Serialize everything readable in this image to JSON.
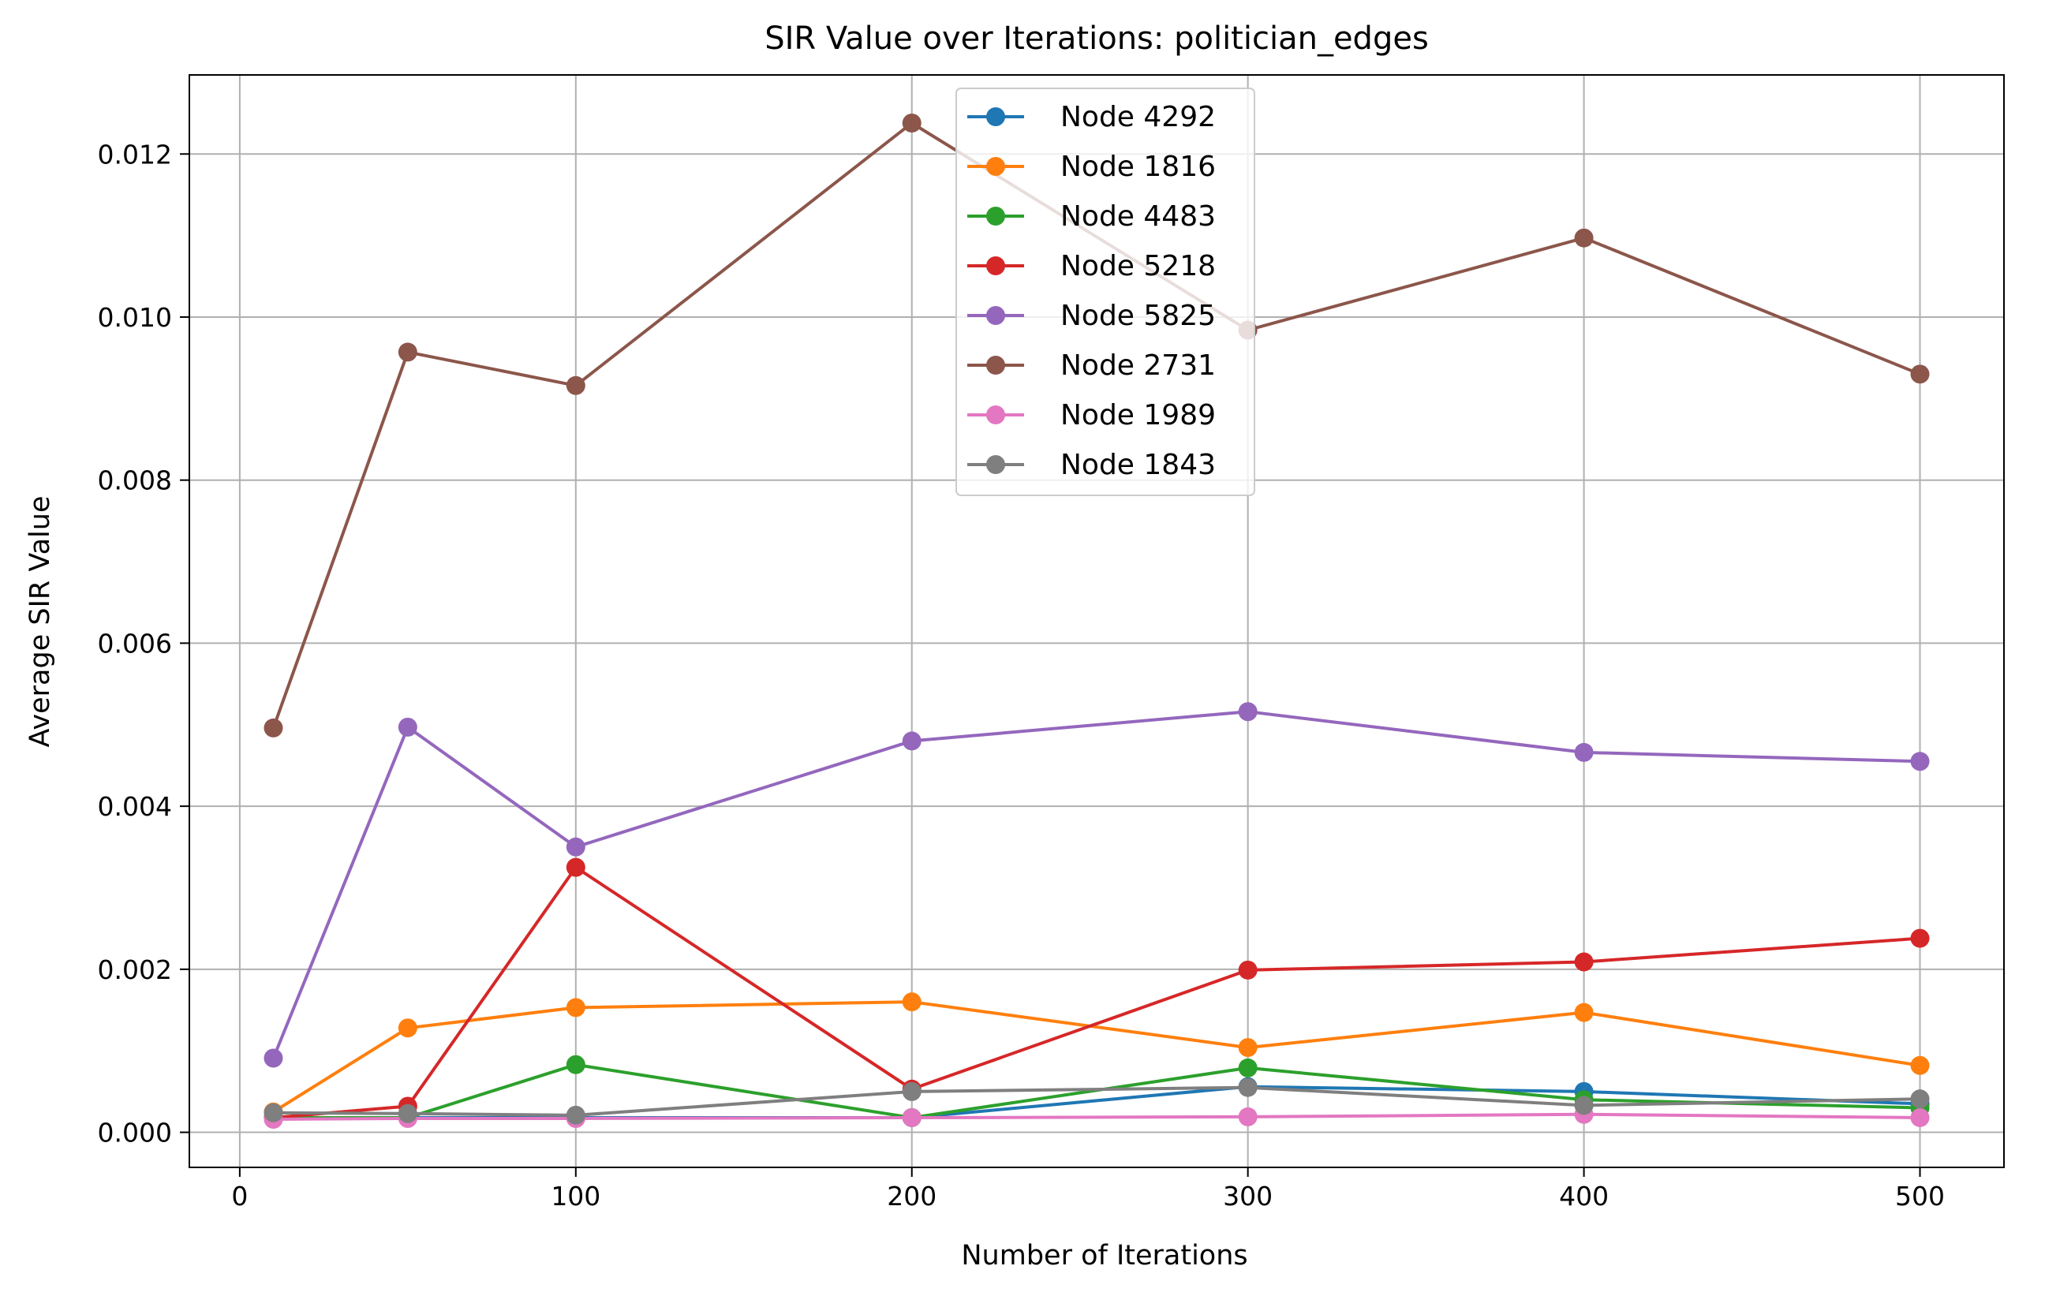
{
  "chart_data": {
    "type": "line",
    "title": "SIR Value over Iterations: politician_edges",
    "xlabel": "Number of Iterations",
    "ylabel": "Average SIR Value",
    "x": [
      10,
      50,
      100,
      200,
      300,
      400,
      500
    ],
    "xlim": [
      -15,
      525
    ],
    "ylim": [
      -0.00043,
      0.01297
    ],
    "xticks": [
      0,
      100,
      200,
      300,
      400,
      500
    ],
    "xtick_labels": [
      "0",
      "100",
      "200",
      "300",
      "400",
      "500"
    ],
    "yticks": [
      0,
      0.002,
      0.004,
      0.006,
      0.008,
      0.01,
      0.012
    ],
    "ytick_labels": [
      "0.000",
      "0.002",
      "0.004",
      "0.006",
      "0.008",
      "0.010",
      "0.012"
    ],
    "grid": true,
    "legend_position": "upper center",
    "series": [
      {
        "name": "Node 4292",
        "color": "#1f77b4",
        "values": [
          0.00018,
          0.00018,
          0.00018,
          0.00018,
          0.00056,
          0.0005,
          0.00035
        ]
      },
      {
        "name": "Node 1816",
        "color": "#ff7f0e",
        "values": [
          0.00025,
          0.00128,
          0.00153,
          0.0016,
          0.00104,
          0.00147,
          0.00082
        ]
      },
      {
        "name": "Node 4483",
        "color": "#2ca02c",
        "values": [
          0.00018,
          0.00018,
          0.00083,
          0.00018,
          0.00079,
          0.0004,
          0.0003
        ]
      },
      {
        "name": "Node 5218",
        "color": "#d62728",
        "values": [
          0.00018,
          0.00032,
          0.00325,
          0.00053,
          0.00199,
          0.00209,
          0.00238
        ]
      },
      {
        "name": "Node 5825",
        "color": "#9467bd",
        "values": [
          0.00091,
          0.00497,
          0.0035,
          0.0048,
          0.00516,
          0.00466,
          0.00455
        ]
      },
      {
        "name": "Node 2731",
        "color": "#8c564b",
        "values": [
          0.00496,
          0.00957,
          0.00916,
          0.01238,
          0.00984,
          0.01097,
          0.0093
        ]
      },
      {
        "name": "Node 1989",
        "color": "#e377c2",
        "values": [
          0.00016,
          0.00017,
          0.00017,
          0.00018,
          0.00019,
          0.00022,
          0.00018
        ]
      },
      {
        "name": "Node 1843",
        "color": "#7f7f7f",
        "values": [
          0.00024,
          0.00023,
          0.00021,
          0.0005,
          0.00055,
          0.00033,
          0.00041
        ]
      }
    ]
  }
}
